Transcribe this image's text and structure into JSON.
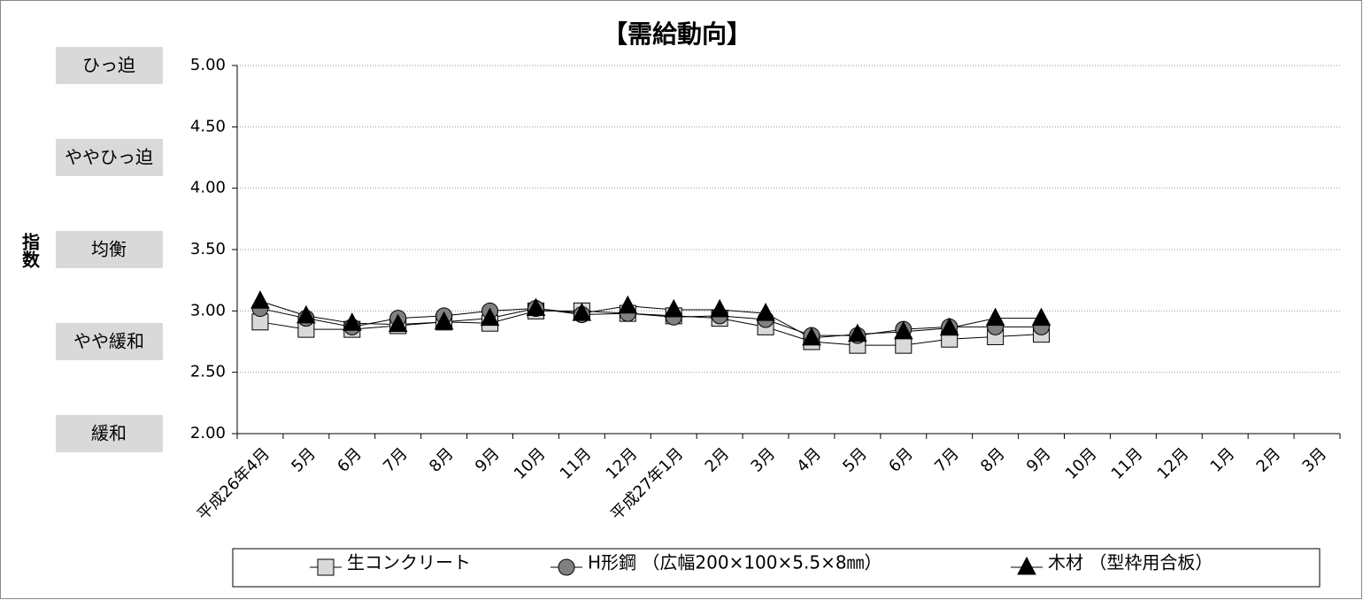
{
  "chart_data": {
    "type": "line",
    "title": "【需給動向】",
    "y_label": "指数",
    "level_labels": [
      "ひっ迫",
      "ややひっ迫",
      "均衡",
      "やや緩和",
      "緩和"
    ],
    "categories": [
      "平成26年4月",
      "5月",
      "6月",
      "7月",
      "8月",
      "9月",
      "10月",
      "11月",
      "12月",
      "平成27年1月",
      "2月",
      "3月",
      "4月",
      "5月",
      "6月",
      "7月",
      "8月",
      "9月",
      "10月",
      "11月",
      "12月",
      "1月",
      "2月",
      "3月"
    ],
    "series": [
      {
        "name": "生コンクリート",
        "color": "#d9d9d9",
        "marker": "square",
        "values": [
          2.91,
          2.85,
          2.85,
          2.88,
          2.91,
          2.9,
          3.0,
          3.0,
          2.98,
          2.96,
          2.94,
          2.87,
          2.75,
          2.72,
          2.72,
          2.77,
          2.79,
          2.81,
          null,
          null,
          null,
          null,
          null,
          null
        ]
      },
      {
        "name": "H形鋼 （広幅200×100×5.5×8㎜）",
        "color": "#808080",
        "marker": "circle",
        "values": [
          3.02,
          2.94,
          2.87,
          2.94,
          2.96,
          3.0,
          3.02,
          2.97,
          2.98,
          2.95,
          2.96,
          2.93,
          2.8,
          2.8,
          2.85,
          2.87,
          2.87,
          2.87,
          null,
          null,
          null,
          null,
          null,
          null
        ]
      },
      {
        "name": "木材 （型枠用合板）",
        "color": "#000000",
        "marker": "triangle",
        "values": [
          3.08,
          2.96,
          2.9,
          2.89,
          2.91,
          2.94,
          3.02,
          2.98,
          3.04,
          3.01,
          3.01,
          2.98,
          2.78,
          2.81,
          2.83,
          2.86,
          2.94,
          2.94,
          null,
          null,
          null,
          null,
          null,
          null
        ]
      }
    ],
    "ylim": [
      2,
      5
    ],
    "yticks": [
      {
        "value": 2,
        "label": "2.00"
      },
      {
        "value": 2.5,
        "label": "2.50"
      },
      {
        "value": 3,
        "label": "3.00"
      },
      {
        "value": 3.5,
        "label": "3.50"
      },
      {
        "value": 4,
        "label": "4.00"
      },
      {
        "value": 4.5,
        "label": "4.50"
      },
      {
        "value": 5,
        "label": "5.00"
      }
    ],
    "grid": true
  }
}
